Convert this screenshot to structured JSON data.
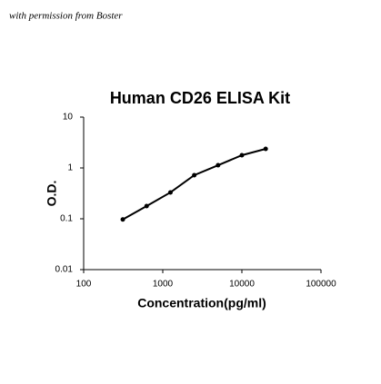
{
  "watermark": "with permission from Boster",
  "chart_data": {
    "type": "line",
    "title": "Human CD26 ELISA Kit",
    "x_label": "Concentration(pg/ml)",
    "y_label": "O.D.",
    "x": [
      312.5,
      625,
      1250,
      2500,
      5000,
      10000,
      20000
    ],
    "series": [
      {
        "color": "#000000",
        "values": [
          0.097,
          0.178,
          0.33,
          0.72,
          1.13,
          1.78,
          2.37
        ]
      }
    ],
    "xlim": [
      100,
      100000
    ],
    "xticks": [
      100,
      1000,
      10000,
      100000
    ],
    "ylim": [
      0.01,
      10
    ],
    "yticks": [
      0.01,
      0.1,
      1,
      10
    ],
    "log_x": true,
    "log_y": true,
    "grid": false
  }
}
